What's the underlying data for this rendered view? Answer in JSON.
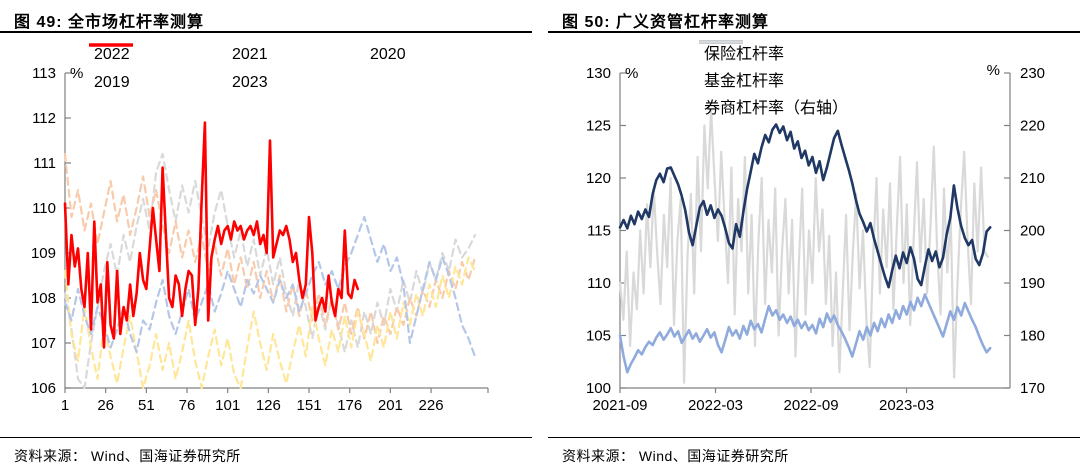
{
  "panels": [
    {
      "title": "图 49:  全市场杠杆率测算",
      "source": "资料来源： Wind、国海证券研究所"
    },
    {
      "title": "图 50:  广义资管杠杆率测算",
      "source": "资料来源： Wind、国海证券研究所"
    }
  ],
  "colors": {
    "axis": "#808080",
    "red": "#FF0000",
    "blue2022": "#B4C7E7",
    "yellow2021": "#FFE699",
    "gray2020": "#D9D9D9",
    "orange2019": "#F8CBAD",
    "navy": "#1F3864",
    "fund_blue": "#8FAADC",
    "broker_gray": "#D9D9D9"
  },
  "chart_data": [
    {
      "type": "line",
      "title": "全市场杠杆率测算",
      "x_min": 1,
      "x_max": 261,
      "end_tick": true,
      "x_tick_values": [
        1,
        26,
        51,
        76,
        101,
        126,
        151,
        176,
        201,
        226
      ],
      "x_tick_labels": [
        "1",
        "26",
        "51",
        "76",
        "101",
        "126",
        "151",
        "176",
        "201",
        "226"
      ],
      "y_left": {
        "min": 106,
        "max": 113,
        "step": 1,
        "unit": "%"
      },
      "legend_rows": [
        [
          "2022",
          "2021",
          "2020"
        ],
        [
          "2019",
          "2023"
        ]
      ],
      "series": [
        {
          "name": "2020",
          "color": "#D9D9D9",
          "dash": true,
          "axis": "left",
          "width": 2.2,
          "x_start": 1,
          "x_step": 4,
          "values": [
            108.1,
            107.3,
            106.2,
            106.0,
            107.0,
            107.8,
            108.6,
            109.2,
            108.5,
            109.4,
            108.8,
            109.6,
            110.2,
            109.5,
            110.8,
            111.2,
            110.4,
            109.7,
            110.5,
            109.9,
            110.6,
            109.8,
            109.1,
            109.9,
            110.4,
            109.6,
            108.9,
            109.5,
            108.7,
            109.3,
            108.5,
            109.1,
            108.3,
            108.9,
            108.1,
            107.6,
            108.4,
            107.8,
            107.1,
            107.9,
            107.3,
            108.0,
            107.4,
            106.8,
            107.5,
            106.9,
            107.7,
            107.2,
            107.9,
            107.4,
            108.2,
            107.7,
            108.4,
            107.9,
            108.6,
            108.1,
            108.8,
            108.4,
            109.0,
            108.6,
            109.3,
            108.9,
            109.1,
            109.4
          ]
        },
        {
          "name": "2019",
          "color": "#F8CBAD",
          "dash": true,
          "axis": "left",
          "width": 2.2,
          "x_start": 1,
          "x_step": 4,
          "values": [
            111.2,
            109.8,
            110.4,
            109.5,
            110.1,
            109.2,
            109.9,
            110.6,
            109.7,
            110.3,
            109.4,
            110.0,
            110.7,
            109.8,
            110.4,
            109.6,
            109.0,
            109.7,
            108.9,
            109.5,
            108.8,
            109.4,
            108.6,
            109.2,
            108.5,
            109.1,
            108.3,
            108.9,
            108.2,
            108.8,
            108.0,
            108.6,
            107.9,
            108.5,
            107.7,
            108.3,
            107.6,
            108.2,
            107.5,
            108.1,
            107.4,
            108.0,
            107.3,
            107.9,
            107.2,
            107.8,
            107.1,
            107.7,
            107.0,
            107.6,
            107.2,
            107.8,
            107.4,
            108.0,
            107.6,
            108.2,
            107.8,
            108.4,
            108.0,
            108.6,
            108.2,
            108.8,
            108.4,
            108.9
          ]
        },
        {
          "name": "2021",
          "color": "#FFE699",
          "dash": true,
          "axis": "left",
          "width": 2.2,
          "x_start": 1,
          "x_step": 4,
          "values": [
            108.6,
            107.2,
            106.6,
            107.8,
            106.9,
            106.2,
            107.4,
            106.7,
            106.1,
            106.9,
            107.6,
            106.8,
            106.0,
            106.5,
            107.2,
            106.4,
            107.0,
            106.2,
            106.8,
            107.5,
            106.6,
            106.0,
            106.7,
            107.3,
            106.5,
            107.1,
            106.3,
            106.0,
            106.9,
            107.7,
            107.0,
            106.4,
            107.2,
            106.6,
            106.1,
            106.8,
            107.4,
            106.7,
            107.8,
            107.1,
            106.5,
            107.3,
            106.8,
            107.6,
            106.9,
            107.7,
            107.2,
            106.6,
            107.4,
            106.9,
            107.7,
            107.1,
            107.9,
            107.4,
            108.1,
            107.6,
            108.3,
            107.8,
            108.5,
            108.0,
            108.7,
            108.3,
            108.9,
            108.6
          ]
        },
        {
          "name": "2022",
          "color": "#B4C7E7",
          "dash": true,
          "axis": "left",
          "width": 2.2,
          "x_start": 1,
          "x_step": 4,
          "values": [
            107.9,
            107.5,
            108.2,
            107.6,
            107.2,
            107.8,
            107.4,
            106.9,
            107.3,
            107.8,
            107.2,
            106.8,
            107.5,
            107.3,
            107.9,
            108.4,
            107.6,
            107.2,
            107.7,
            108.2,
            107.5,
            107.9,
            108.3,
            107.7,
            108.1,
            108.6,
            108.2,
            107.8,
            108.4,
            108.1,
            108.5,
            108.2,
            107.9,
            108.4,
            108.0,
            108.3,
            107.7,
            108.1,
            108.5,
            108.8,
            108.3,
            108.6,
            108.2,
            108.7,
            109.0,
            109.4,
            109.8,
            109.3,
            108.8,
            109.2,
            108.6,
            108.9,
            108.3,
            107.0,
            107.6,
            108.2,
            108.8,
            108.4,
            108.9,
            108.5,
            108.0,
            107.4,
            107.1,
            106.7
          ]
        },
        {
          "name": "2023",
          "color": "#FF0000",
          "dash": false,
          "axis": "left",
          "width": 2.6,
          "x_start": 1,
          "x_step": 2,
          "values": [
            110.1,
            108.3,
            109.4,
            108.7,
            109.1,
            108.2,
            107.8,
            109.0,
            107.3,
            109.7,
            107.9,
            108.3,
            106.9,
            108.8,
            107.4,
            107.1,
            108.6,
            107.2,
            107.8,
            107.5,
            108.3,
            107.6,
            108.1,
            109.0,
            108.4,
            108.2,
            109.1,
            110.0,
            109.3,
            108.6,
            110.9,
            109.4,
            108.0,
            107.8,
            108.5,
            108.3,
            107.6,
            108.2,
            108.6,
            108.5,
            107.4,
            108.2,
            110.2,
            111.9,
            107.5,
            108.9,
            109.3,
            109.6,
            109.2,
            109.5,
            109.6,
            109.3,
            109.7,
            109.5,
            109.6,
            109.3,
            109.5,
            109.6,
            109.4,
            109.7,
            109.2,
            109.4,
            109.0,
            111.5,
            108.9,
            109.2,
            109.5,
            109.4,
            109.6,
            109.3,
            108.8,
            109.0,
            108.4,
            108.0,
            108.3,
            109.8,
            109.0,
            107.5,
            107.8,
            108.0,
            107.7,
            108.5,
            107.9,
            107.6,
            108.2,
            108.0,
            109.5,
            108.1,
            108.0,
            108.4,
            108.2
          ]
        }
      ]
    },
    {
      "type": "line",
      "title": "广义资管杠杆率测算",
      "x_min": 0,
      "x_max": 24.5,
      "end_tick": false,
      "x_tick_values": [
        0,
        6,
        12,
        18
      ],
      "x_tick_labels": [
        "2021-09",
        "2022-03",
        "2022-09",
        "2023-03"
      ],
      "y_left": {
        "min": 100,
        "max": 130,
        "step": 5,
        "unit": "%"
      },
      "y_right": {
        "min": 170,
        "max": 230,
        "step": 10,
        "unit": "%"
      },
      "legend_rows": [
        [
          "保险杠杆率"
        ],
        [
          "基金杠杆率"
        ],
        [
          "券商杠杆率（右轴）"
        ]
      ],
      "series": [
        {
          "name": "券商杠杆率（右轴）",
          "color": "#D9D9D9",
          "dash": false,
          "axis": "right",
          "width": 2.2,
          "x_start": 0,
          "x_step": 0.212,
          "values": [
            190,
            183,
            196,
            178,
            192,
            185,
            200,
            188,
            205,
            193,
            208,
            196,
            186,
            203,
            193,
            210,
            182,
            198,
            206,
            171,
            195,
            207,
            188,
            214,
            196,
            220,
            208,
            223,
            210,
            198,
            215,
            202,
            190,
            212,
            184,
            206,
            196,
            214,
            188,
            203,
            178,
            198,
            210,
            186,
            202,
            192,
            208,
            180,
            196,
            206,
            188,
            202,
            176,
            194,
            208,
            184,
            200,
            190,
            210,
            196,
            204,
            186,
            199,
            178,
            192,
            173,
            188,
            203,
            181,
            196,
            207,
            189,
            200,
            183,
            174,
            195,
            210,
            188,
            204,
            193,
            209,
            185,
            200,
            214,
            190,
            205,
            182,
            198,
            213,
            194,
            206,
            188,
            201,
            216,
            196,
            184,
            208,
            192,
            203,
            172,
            190,
            204,
            215,
            198,
            186,
            209,
            196,
            212,
            196,
            195
          ]
        },
        {
          "name": "基金杠杆率",
          "color": "#8FAADC",
          "dash": false,
          "axis": "left",
          "width": 2.6,
          "x_start": 0,
          "x_step": 0.228,
          "values": [
            105.0,
            103.0,
            101.5,
            102.3,
            102.9,
            103.6,
            103.2,
            103.9,
            104.4,
            104.1,
            104.8,
            105.3,
            104.6,
            105.1,
            105.7,
            104.9,
            105.4,
            104.3,
            104.9,
            105.5,
            104.7,
            105.2,
            104.4,
            105.0,
            105.6,
            104.8,
            105.3,
            104.1,
            103.4,
            104.6,
            105.8,
            105.0,
            105.5,
            104.7,
            105.9,
            105.1,
            106.4,
            105.6,
            106.1,
            105.3,
            106.6,
            107.8,
            106.9,
            107.4,
            106.5,
            107.0,
            106.2,
            106.8,
            105.9,
            106.5,
            105.7,
            106.3,
            105.5,
            106.0,
            105.2,
            106.6,
            105.8,
            107.1,
            106.3,
            106.9,
            106.0,
            105.4,
            104.7,
            103.9,
            103.0,
            104.2,
            105.4,
            104.6,
            105.8,
            105.0,
            106.2,
            105.4,
            106.6,
            105.8,
            107.0,
            106.2,
            107.4,
            106.6,
            107.8,
            107.0,
            108.2,
            107.4,
            108.6,
            107.8,
            108.9,
            108.1,
            107.3,
            106.5,
            105.7,
            104.9,
            106.1,
            107.3,
            106.5,
            107.7,
            106.9,
            108.1,
            107.3,
            106.5,
            105.8,
            104.9,
            104.1,
            103.4,
            103.8
          ]
        },
        {
          "name": "保险杠杆率",
          "color": "#1F3864",
          "dash": false,
          "axis": "left",
          "width": 2.6,
          "x_start": 0,
          "x_step": 0.228,
          "values": [
            115.3,
            116.0,
            115.2,
            116.4,
            115.6,
            116.8,
            116.1,
            117.0,
            116.3,
            118.5,
            119.8,
            120.4,
            119.6,
            120.9,
            121.0,
            120.2,
            119.4,
            118.3,
            116.9,
            114.8,
            113.6,
            115.4,
            117.2,
            117.8,
            116.5,
            117.4,
            116.2,
            117.0,
            116.4,
            115.2,
            113.8,
            113.3,
            115.6,
            114.4,
            116.8,
            118.9,
            120.6,
            122.3,
            121.4,
            122.9,
            124.1,
            123.4,
            124.6,
            125.1,
            124.3,
            124.9,
            123.6,
            124.4,
            122.8,
            123.5,
            121.9,
            122.6,
            121.2,
            122.0,
            120.5,
            121.6,
            119.8,
            121.0,
            122.4,
            123.8,
            124.5,
            123.2,
            122.0,
            120.8,
            119.5,
            117.9,
            116.6,
            115.8,
            114.9,
            115.7,
            114.2,
            113.0,
            111.8,
            110.6,
            109.6,
            111.2,
            112.6,
            111.4,
            112.9,
            111.9,
            113.4,
            112.3,
            110.4,
            109.8,
            111.6,
            113.2,
            112.1,
            113.0,
            111.5,
            112.4,
            114.6,
            116.2,
            119.3,
            117.1,
            115.4,
            114.3,
            113.6,
            114.1,
            112.3,
            111.7,
            112.8,
            114.9,
            115.3
          ]
        }
      ]
    }
  ]
}
